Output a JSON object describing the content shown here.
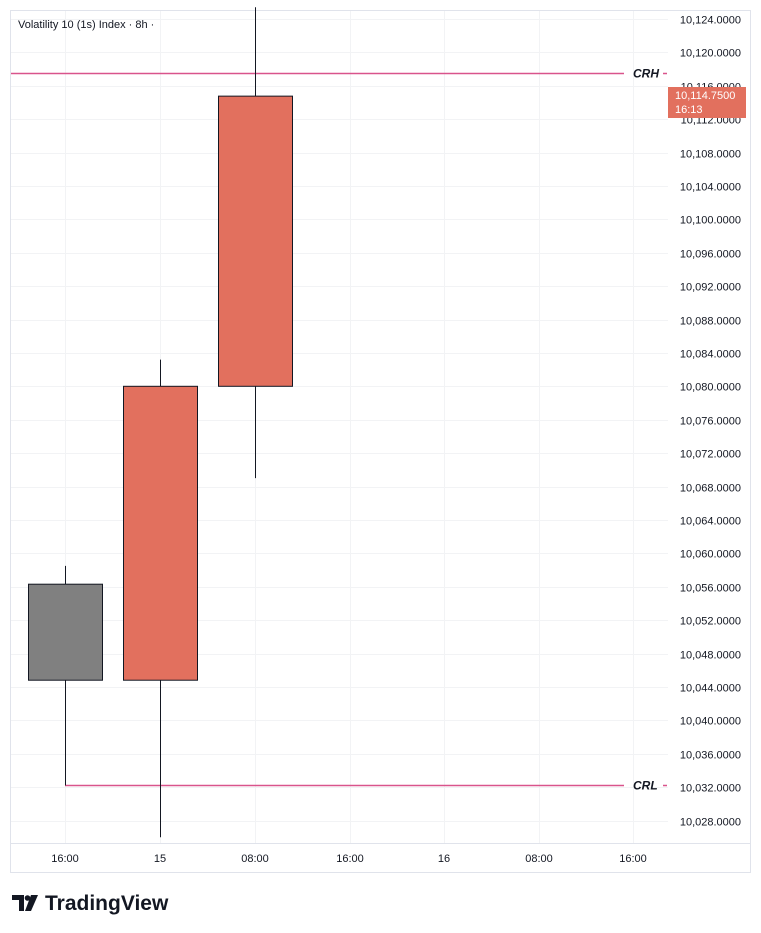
{
  "header": {
    "title": "Volatility 10 (1s) Index · 8h ·"
  },
  "brand": {
    "name": "TradingView"
  },
  "colors": {
    "up": "#e2705e",
    "neutral": "#808080",
    "level_line": "#d9548c",
    "tag_bg": "#e2705e",
    "grid": "#f2f3f5"
  },
  "price_tag": {
    "price": "10,114.7500",
    "countdown": "16:13"
  },
  "chart_data": {
    "type": "candlestick",
    "title": "Volatility 10 (1s) Index · 8h ·",
    "x_ticks": [
      "16:00",
      "15",
      "08:00",
      "16:00",
      "16",
      "08:00",
      "16:00"
    ],
    "y_ticks": [
      10028,
      10032,
      10036,
      10040,
      10044,
      10048,
      10052,
      10056,
      10060,
      10064,
      10068,
      10072,
      10076,
      10080,
      10084,
      10088,
      10092,
      10096,
      10100,
      10104,
      10108,
      10112,
      10116,
      10120,
      10124
    ],
    "y_tick_labels": [
      "10,028.0000",
      "10,032.0000",
      "10,036.0000",
      "10,040.0000",
      "10,044.0000",
      "10,048.0000",
      "10,052.0000",
      "10,056.0000",
      "10,060.0000",
      "10,064.0000",
      "10,068.0000",
      "10,072.0000",
      "10,076.0000",
      "10,080.0000",
      "10,084.0000",
      "10,088.0000",
      "10,092.0000",
      "10,096.0000",
      "10,100.0000",
      "10,104.0000",
      "10,108.0000",
      "10,112.0000",
      "10,116.0000",
      "10,120.0000",
      "10,124.0000"
    ],
    "ylim": [
      10024.8,
      10125.4
    ],
    "candles": [
      {
        "time": "16:00",
        "open": 10044.8,
        "high": 10058.5,
        "low": 10032.2,
        "close": 10056.3,
        "color": "neutral"
      },
      {
        "time": "00:00",
        "open": 10044.8,
        "high": 10083.2,
        "low": 10026.0,
        "close": 10080.0,
        "color": "up"
      },
      {
        "time": "08:00",
        "open": 10080.0,
        "high": 10125.4,
        "low": 10069.0,
        "close": 10114.75,
        "color": "up"
      }
    ],
    "levels": [
      {
        "name": "CRH",
        "price": 10117.5,
        "start_candle": -1
      },
      {
        "name": "CRL",
        "price": 10032.2,
        "start_candle": 0
      }
    ],
    "grid": true
  }
}
